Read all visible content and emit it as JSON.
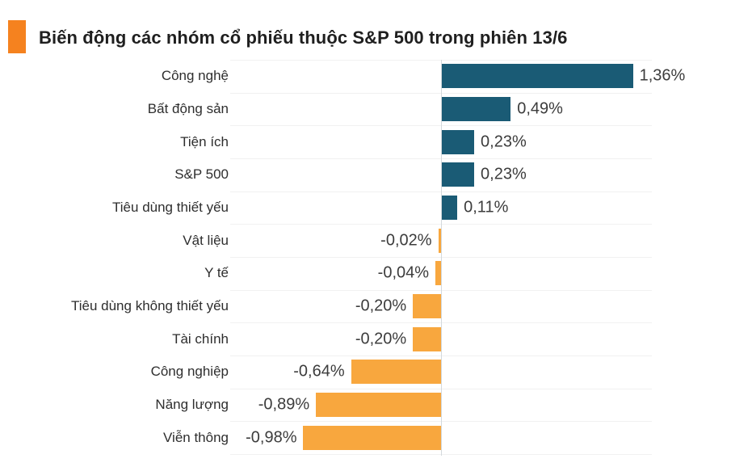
{
  "header": {
    "title": "Biến động các nhóm cổ phiếu thuộc S&P 500 trong phiên 13/6",
    "accent_color": "#F5821F"
  },
  "chart_data": {
    "type": "bar",
    "orientation": "horizontal",
    "title": "Biến động các nhóm cổ phiếu thuộc S&P 500 trong phiên 13/6",
    "categories": [
      "Công nghệ",
      "Bất động sản",
      "Tiện ích",
      "S&P 500",
      "Tiêu dùng thiết yếu",
      "Vật liệu",
      "Y tế",
      "Tiêu dùng không thiết yếu",
      "Tài chính",
      "Công nghiệp",
      "Năng lượng",
      "Viễn thông"
    ],
    "values": [
      1.36,
      0.49,
      0.23,
      0.23,
      0.11,
      -0.02,
      -0.04,
      -0.2,
      -0.2,
      -0.64,
      -0.89,
      -0.98
    ],
    "value_labels": [
      "1,36%",
      "0,49%",
      "0,23%",
      "0,23%",
      "0,11%",
      "-0,02%",
      "-0,04%",
      "-0,20%",
      "-0,20%",
      "-0,64%",
      "-0,89%",
      "-0,98%"
    ],
    "colors": {
      "positive": "#1A5B75",
      "negative": "#F8A73E"
    },
    "xlim": [
      -1.5,
      1.5
    ],
    "grid": "horizontal-row-separators",
    "legend": "none",
    "xlabel": "",
    "ylabel": ""
  }
}
